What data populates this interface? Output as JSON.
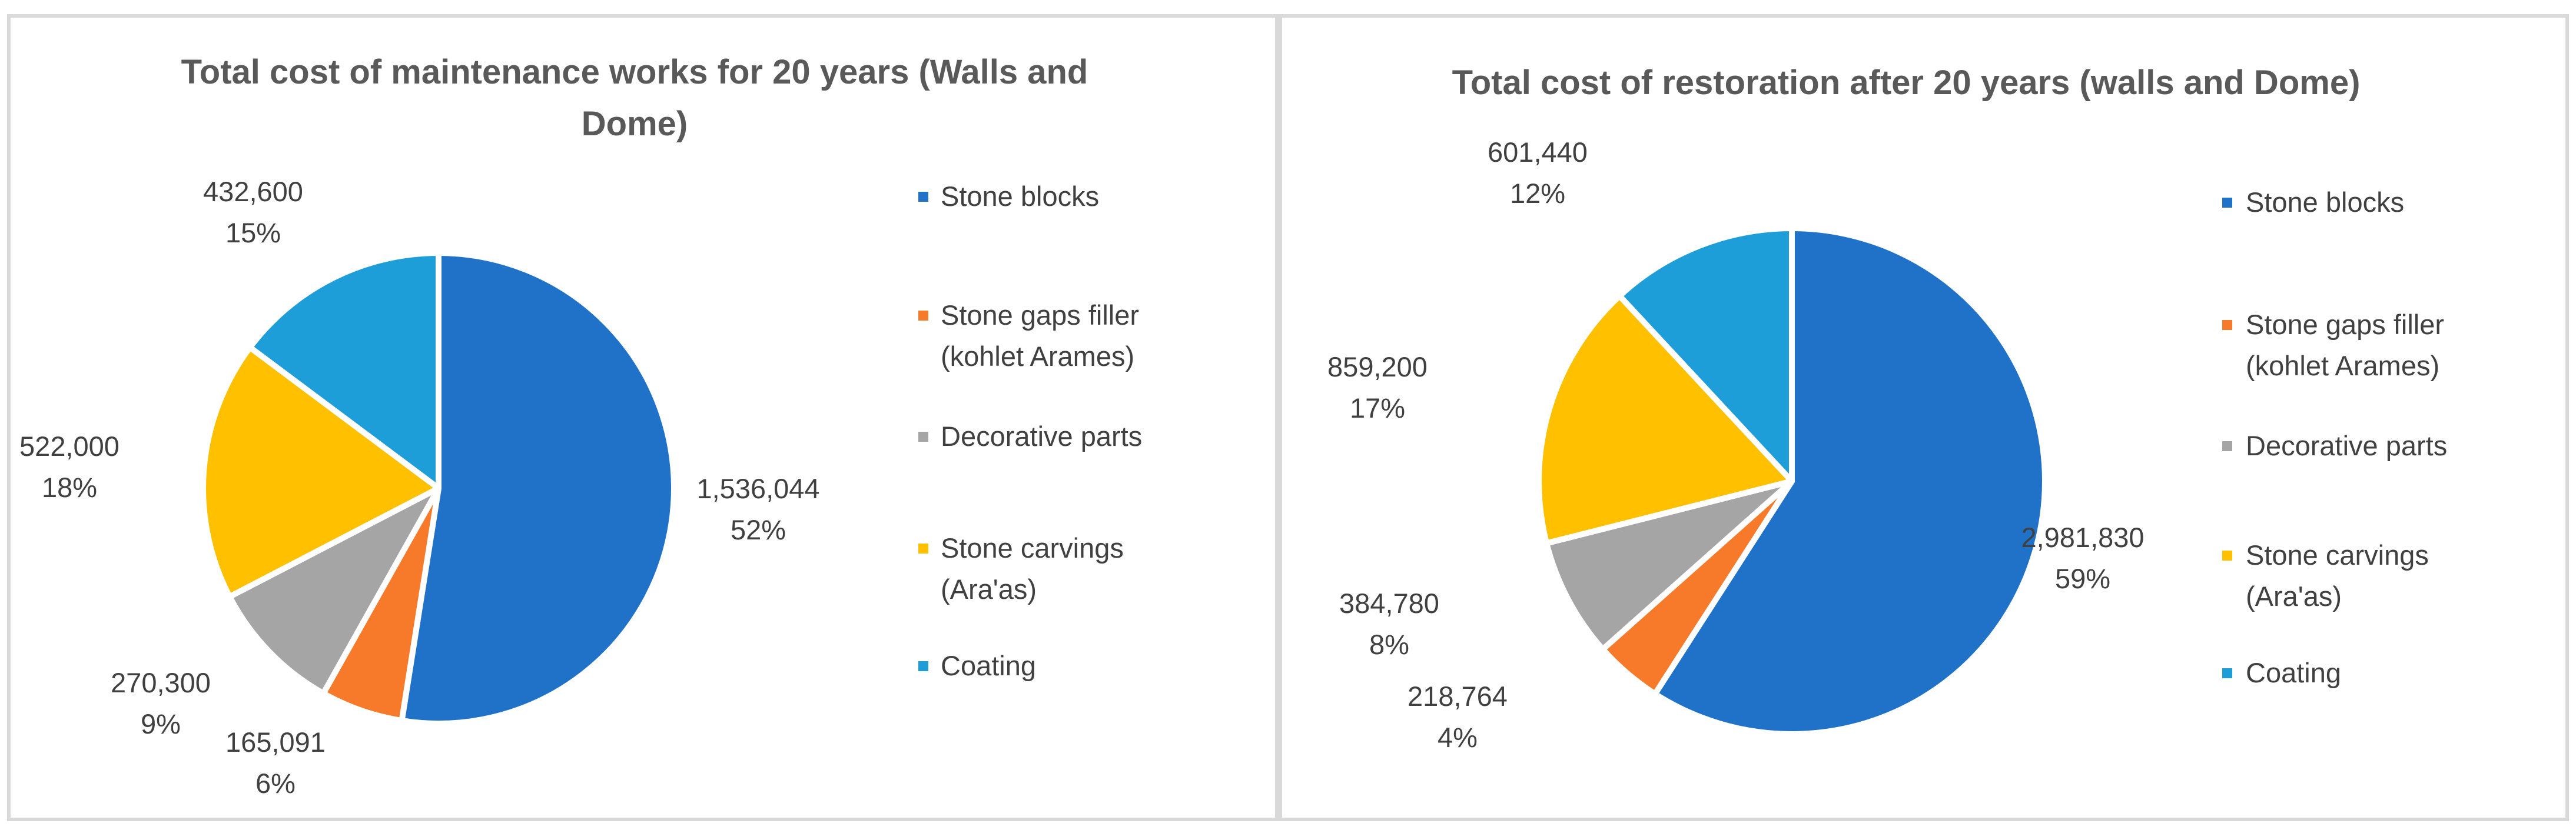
{
  "chart_data": [
    {
      "type": "pie",
      "title_lines": [
        "Total cost of maintenance works for 20 years (Walls and",
        "Dome)"
      ],
      "categories": [
        "Stone blocks",
        "Stone gaps filler (kohlet Arames)",
        "Decorative parts",
        "Stone carvings (Ara'as)",
        "Coating"
      ],
      "legend_lines": [
        [
          "Stone blocks"
        ],
        [
          "Stone gaps filler",
          "(kohlet Arames)"
        ],
        [
          "Decorative parts"
        ],
        [
          "Stone carvings",
          "(Ara'as)"
        ],
        [
          "Coating"
        ]
      ],
      "values": [
        1536044,
        165091,
        270300,
        522000,
        432600
      ],
      "value_labels": [
        "1,536,044",
        "165,091",
        "270,300",
        "522,000",
        "432,600"
      ],
      "percent_labels": [
        "52%",
        "6%",
        "9%",
        "18%",
        "15%"
      ],
      "colors": [
        "#1f72c8",
        "#f77a2b",
        "#a5a5a5",
        "#ffc000",
        "#1e9ed9"
      ],
      "legend_position": "right"
    },
    {
      "type": "pie",
      "title_lines": [
        "Total cost of restoration after 20 years (walls and Dome)"
      ],
      "categories": [
        "Stone blocks",
        "Stone gaps filler (kohlet Arames)",
        "Decorative parts",
        "Stone carvings (Ara'as)",
        "Coating"
      ],
      "legend_lines": [
        [
          "Stone blocks"
        ],
        [
          "Stone gaps filler",
          "(kohlet Arames)"
        ],
        [
          "Decorative parts"
        ],
        [
          "Stone carvings",
          "(Ara'as)"
        ],
        [
          "Coating"
        ]
      ],
      "values": [
        2981830,
        218764,
        384780,
        859200,
        601440
      ],
      "value_labels": [
        "2,981,830",
        "218,764",
        "384,780",
        "859,200",
        "601,440"
      ],
      "percent_labels": [
        "59%",
        "4%",
        "8%",
        "17%",
        "12%"
      ],
      "colors": [
        "#1f72c8",
        "#f77a2b",
        "#a5a5a5",
        "#ffc000",
        "#1e9ed9"
      ],
      "legend_position": "right"
    }
  ]
}
